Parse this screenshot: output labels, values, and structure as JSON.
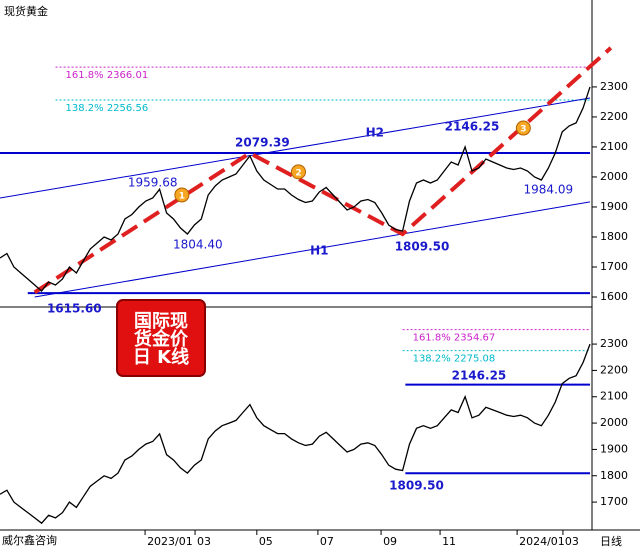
{
  "title": "现货黄金",
  "source": "威尔鑫咨询",
  "badge": [
    "国际现",
    "货金价",
    "日 K线"
  ],
  "chart_data": [
    {
      "type": "line",
      "xlim": [
        0,
        85
      ],
      "ylim": [
        1570,
        2563
      ],
      "yticks": [
        1600,
        1700,
        1800,
        1900,
        2000,
        2100,
        2200,
        2300
      ],
      "series": [
        {
          "name": "现货黄金",
          "color": "#000000",
          "x": [
            0,
            1,
            2,
            3,
            4,
            5,
            6,
            7,
            8,
            9,
            10,
            11,
            12,
            13,
            14,
            15,
            16,
            17,
            18,
            19,
            20,
            21,
            22,
            23,
            24,
            25,
            26,
            27,
            28,
            29,
            30,
            31,
            32,
            33,
            34,
            35,
            36,
            37,
            38,
            39,
            40,
            41,
            42,
            43,
            44,
            45,
            46,
            47,
            48,
            49,
            50,
            51,
            52,
            53,
            54,
            55,
            56,
            57,
            58,
            59,
            60,
            61,
            62,
            63,
            64,
            65,
            66,
            67,
            68,
            69,
            70,
            71,
            72,
            73,
            74,
            75,
            76,
            77,
            78,
            79,
            80,
            81,
            82,
            83,
            84,
            85
          ],
          "values": [
            1730,
            1745,
            1700,
            1680,
            1660,
            1640,
            1620,
            1650,
            1640,
            1660,
            1700,
            1680,
            1720,
            1760,
            1780,
            1800,
            1790,
            1810,
            1860,
            1875,
            1900,
            1920,
            1930,
            1959,
            1880,
            1860,
            1830,
            1810,
            1840,
            1860,
            1940,
            1970,
            1990,
            2000,
            2010,
            2040,
            2070,
            2020,
            1990,
            1975,
            1960,
            1960,
            1940,
            1925,
            1915,
            1920,
            1950,
            1965,
            1940,
            1915,
            1890,
            1900,
            1920,
            1925,
            1915,
            1880,
            1840,
            1825,
            1820,
            1920,
            1980,
            1990,
            1980,
            1990,
            2020,
            2050,
            2040,
            2100,
            2020,
            2030,
            2060,
            2050,
            2040,
            2030,
            2025,
            2030,
            2020,
            2000,
            1990,
            2030,
            2080,
            2150,
            2170,
            2180,
            2230,
            2300
          ]
        }
      ],
      "fib": [
        {
          "value": 2366.01,
          "label": "161.8%  2366.01",
          "color": "#cc22cc",
          "x0": 8
        },
        {
          "value": 2256.56,
          "label": "138.2%  2256.56",
          "color": "#00bbcc",
          "x0": 8
        }
      ],
      "lines": [
        {
          "x": [
            0,
            85
          ],
          "y": [
            1930,
            2263
          ],
          "color": "#0000cc",
          "width": 1
        },
        {
          "x": [
            5,
            85
          ],
          "y": [
            1600,
            1917
          ],
          "color": "#0000cc",
          "width": 1
        },
        {
          "x": [
            0,
            85
          ],
          "y": [
            2080,
            2080
          ],
          "color": "#0000cc",
          "width": 2
        },
        {
          "x": [
            4,
            85
          ],
          "y": [
            1613,
            1613
          ],
          "color": "#0000cc",
          "width": 2
        },
        {
          "x": [
            5,
            36,
            58,
            88
          ],
          "y": [
            1615.6,
            2079.39,
            1809.5,
            2430
          ],
          "color": "#e02020",
          "width": 4,
          "dash": true
        }
      ],
      "texts": [
        {
          "text": "1959.68",
          "x": 22,
          "y": 1980,
          "bold": false
        },
        {
          "text": "1804.40",
          "x": 28.5,
          "y": 1773,
          "bold": false
        },
        {
          "text": "2079.39",
          "x": 37.8,
          "y": 2113,
          "bold": true
        },
        {
          "text": "2146.25",
          "x": 68,
          "y": 2167,
          "bold": true
        },
        {
          "text": "1984.09",
          "x": 79,
          "y": 1957,
          "bold": false
        },
        {
          "text": "1809.50",
          "x": 60.8,
          "y": 1767,
          "bold": true
        },
        {
          "text": "1615.60",
          "x": 10.7,
          "y": 1560,
          "bold": true
        },
        {
          "text": "H1",
          "x": 46,
          "y": 1753,
          "bold": true
        },
        {
          "text": "H2",
          "x": 54,
          "y": 2147,
          "bold": true
        }
      ],
      "waves": [
        {
          "text": "1",
          "x": 26.2,
          "y": 1940
        },
        {
          "text": "2",
          "x": 43,
          "y": 2017
        },
        {
          "text": "3",
          "x": 75.4,
          "y": 2163
        }
      ]
    },
    {
      "type": "line",
      "xlim": [
        0,
        85
      ],
      "ylim": [
        1594,
        2437
      ],
      "yticks": [
        1700,
        1800,
        1900,
        2000,
        2100,
        2200,
        2300
      ],
      "xticks": [
        {
          "value": 20.9,
          "label": "2023/01"
        },
        {
          "value": 28.1,
          "label": "03"
        },
        {
          "value": 37,
          "label": "05"
        },
        {
          "value": 45.8,
          "label": "07"
        },
        {
          "value": 54.9,
          "label": "09"
        },
        {
          "value": 63.4,
          "label": "11"
        },
        {
          "value": 74.5,
          "label": "2024/01"
        },
        {
          "value": 81.1,
          "label": "03"
        }
      ],
      "xlabel": "日线",
      "series": [
        {
          "name": "现货黄金",
          "color": "#000000",
          "x": [
            0,
            1,
            2,
            3,
            4,
            5,
            6,
            7,
            8,
            9,
            10,
            11,
            12,
            13,
            14,
            15,
            16,
            17,
            18,
            19,
            20,
            21,
            22,
            23,
            24,
            25,
            26,
            27,
            28,
            29,
            30,
            31,
            32,
            33,
            34,
            35,
            36,
            37,
            38,
            39,
            40,
            41,
            42,
            43,
            44,
            45,
            46,
            47,
            48,
            49,
            50,
            51,
            52,
            53,
            54,
            55,
            56,
            57,
            58,
            59,
            60,
            61,
            62,
            63,
            64,
            65,
            66,
            67,
            68,
            69,
            70,
            71,
            72,
            73,
            74,
            75,
            76,
            77,
            78,
            79,
            80,
            81,
            82,
            83,
            84,
            85
          ],
          "values": [
            1730,
            1745,
            1700,
            1680,
            1660,
            1640,
            1620,
            1650,
            1640,
            1660,
            1700,
            1680,
            1720,
            1760,
            1780,
            1800,
            1790,
            1810,
            1860,
            1875,
            1900,
            1920,
            1930,
            1959,
            1880,
            1860,
            1830,
            1810,
            1840,
            1860,
            1940,
            1970,
            1990,
            2000,
            2010,
            2040,
            2070,
            2020,
            1990,
            1975,
            1960,
            1960,
            1940,
            1925,
            1915,
            1920,
            1950,
            1965,
            1940,
            1915,
            1890,
            1900,
            1920,
            1925,
            1915,
            1880,
            1840,
            1825,
            1820,
            1920,
            1980,
            1990,
            1980,
            1990,
            2020,
            2050,
            2040,
            2100,
            2020,
            2030,
            2060,
            2050,
            2040,
            2030,
            2025,
            2030,
            2020,
            2000,
            1990,
            2030,
            2080,
            2150,
            2170,
            2180,
            2230,
            2300
          ]
        }
      ],
      "fib": [
        {
          "value": 2354.67,
          "label": "161.8%  2354.67",
          "color": "#cc22cc",
          "x0": 58
        },
        {
          "value": 2275.08,
          "label": "138.2%  2275.08",
          "color": "#00bbcc",
          "x0": 58
        }
      ],
      "lines": [
        {
          "x": [
            58.4,
            85
          ],
          "y": [
            2146.25,
            2146.25
          ],
          "color": "#0000cc",
          "width": 2
        },
        {
          "x": [
            58.4,
            85
          ],
          "y": [
            1809.5,
            1809.5
          ],
          "color": "#0000cc",
          "width": 2
        }
      ],
      "texts": [
        {
          "text": "2146.25",
          "x": 69,
          "y": 2178,
          "bold": true
        },
        {
          "text": "1809.50",
          "x": 60,
          "y": 1761,
          "bold": true
        }
      ],
      "waves": []
    }
  ]
}
